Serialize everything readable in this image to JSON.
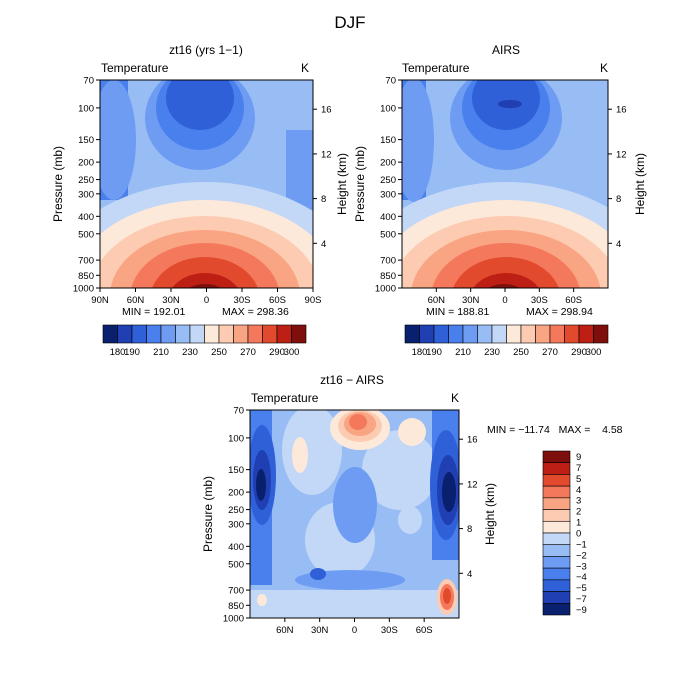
{
  "figure_title": "DJF",
  "colors": {
    "palette_full": [
      "#08206e",
      "#1f3fb3",
      "#2f60d8",
      "#4a80ee",
      "#6d9cf2",
      "#98bdf5",
      "#c3d8f7",
      "#fde9d9",
      "#fccbb1",
      "#f9a482",
      "#f4795c",
      "#e24a2e",
      "#bd1f14",
      "#7f0f0c"
    ],
    "palette_diff": [
      "#08206e",
      "#1f3fb3",
      "#2f60d8",
      "#4a80ee",
      "#6d9cf2",
      "#98bdf5",
      "#c3d8f7",
      "#fde9d9",
      "#fccbb1",
      "#f9a482",
      "#f4795c",
      "#e24a2e",
      "#bd1f14",
      "#7f0f0c"
    ]
  },
  "chart_data": [
    {
      "type": "heatmap",
      "id": "panel1",
      "title": "zt16 (yrs 1−1)",
      "left_label": "Temperature",
      "right_label": "K",
      "ylabel": "Pressure (mb)",
      "y2label": "Height (km)",
      "x_ticks": [
        "90N",
        "60N",
        "30N",
        "0",
        "30S",
        "60S",
        "90S"
      ],
      "y_ticks": [
        "70",
        "100",
        "150",
        "200",
        "250",
        "300",
        "400",
        "500",
        "700",
        "850",
        "1000"
      ],
      "y2_ticks": [
        "16",
        "12",
        "8",
        "4"
      ],
      "min_text": "MIN = 192.01",
      "max_text": "MAX = 298.36",
      "colorbar_ticks": [
        "180",
        "190",
        "210",
        "230",
        "250",
        "270",
        "290",
        "300"
      ],
      "stats": {
        "min": 192.01,
        "max": 298.36
      }
    },
    {
      "type": "heatmap",
      "id": "panel2",
      "title": "AIRS",
      "left_label": "Temperature",
      "right_label": "K",
      "ylabel": "Pressure (mb)",
      "y2label": "Height (km)",
      "x_ticks": [
        "60N",
        "30N",
        "0",
        "30S",
        "60S"
      ],
      "y_ticks": [
        "70",
        "100",
        "150",
        "200",
        "250",
        "300",
        "400",
        "500",
        "700",
        "850",
        "1000"
      ],
      "y2_ticks": [
        "16",
        "12",
        "8",
        "4"
      ],
      "min_text": "MIN = 188.81",
      "max_text": "MAX = 298.94",
      "colorbar_ticks": [
        "180",
        "190",
        "210",
        "230",
        "250",
        "270",
        "290",
        "300"
      ],
      "stats": {
        "min": 188.81,
        "max": 298.94
      }
    },
    {
      "type": "heatmap",
      "id": "panel3",
      "title": "zt16 − AIRS",
      "left_label": "Temperature",
      "right_label": "K",
      "ylabel": "Pressure (mb)",
      "y2label": "Height (km)",
      "x_ticks": [
        "60N",
        "30N",
        "0",
        "30S",
        "60S"
      ],
      "y_ticks": [
        "70",
        "100",
        "150",
        "200",
        "250",
        "300",
        "400",
        "500",
        "700",
        "850",
        "1000"
      ],
      "y2_ticks": [
        "16",
        "12",
        "8",
        "4"
      ],
      "minmax_text": "MIN = −11.74   MAX =    4.58",
      "colorbar_ticks": [
        "9",
        "7",
        "5",
        "4",
        "3",
        "2",
        "1",
        "0",
        "−1",
        "−2",
        "−3",
        "−4",
        "−5",
        "−7",
        "−9"
      ],
      "stats": {
        "min": -11.74,
        "max": 4.58
      }
    }
  ]
}
